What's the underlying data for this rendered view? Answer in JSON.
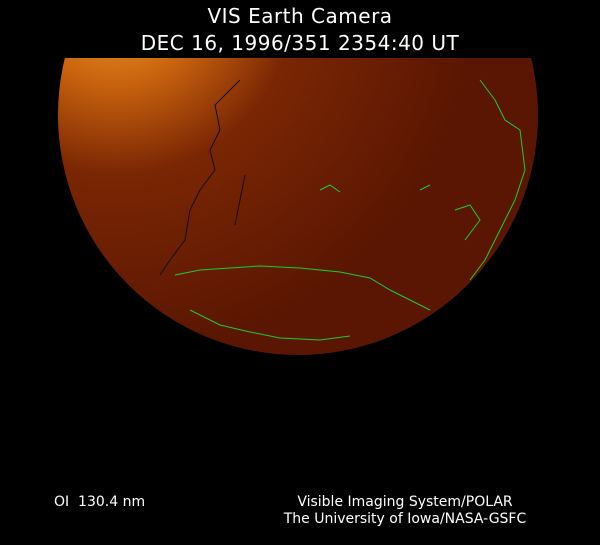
{
  "header": {
    "title": "VIS Earth Camera",
    "timestamp": "DEC 16, 1996/351 2354:40 UT"
  },
  "image": {
    "coastline_color": "#22cc22",
    "limb_color": "#7a2a04"
  },
  "footer": {
    "band": "OI  130.4 nm",
    "credit_line1": "Visible Imaging System/POLAR",
    "credit_line2": "The University of Iowa/NASA-GSFC"
  }
}
